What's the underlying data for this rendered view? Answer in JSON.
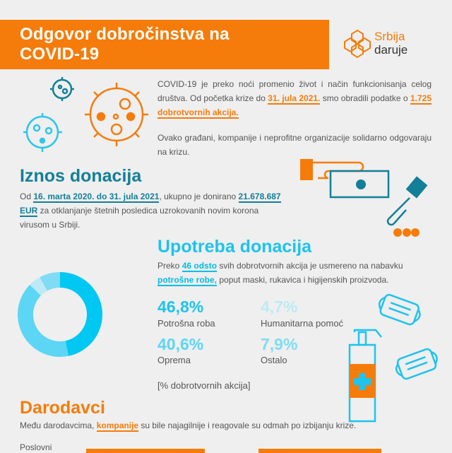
{
  "header": {
    "title_line1": "Odgovor dobročinstva na",
    "title_line2": "COVID-19",
    "logo_line1": "Srbija",
    "logo_line2": "daruje"
  },
  "intro": {
    "p1_a": "COVID-19 je preko noći promenio život i način funkcionisanja celog društva. Od početka krize do ",
    "p1_hl1": "31. jula 2021.",
    "p1_b": " smo obradili podatke o ",
    "p1_hl2": "1.725 dobrotvornih akcija.",
    "p2": "Ovako građani, kompanije i neprofitne organizacije solidarno odgovaraju na krizu."
  },
  "iznos": {
    "heading": "Iznos donacija",
    "a": "Od ",
    "hl1": "16. marta 2020. do 31. jula 2021",
    "b": ", ukupno je donirano ",
    "hl2": "21.678.687 EUR",
    "c": " za otklanjanje štetnih posledica uzrokovanih novim korona virusom u Srbiji."
  },
  "upotreba": {
    "heading": "Upotreba donacija",
    "a": "Preko ",
    "hl1": "46 odsto",
    "b": " svih dobrotvornih akcija je usmereno na nabavku ",
    "hl2": "potrošne robe,",
    "c": " poput maski, rukavica i higijenskih proizvoda.",
    "note": "[% dobrotvornih akcija]"
  },
  "chart_data": {
    "type": "pie",
    "donut": true,
    "unit": "% dobrotvornih akcija",
    "slices": [
      {
        "label": "Potrošna roba",
        "value": 46.8,
        "display": "46,8%",
        "color": "#00c8f2"
      },
      {
        "label": "Oprema",
        "value": 40.6,
        "display": "40,6%",
        "color": "#5cd6f4"
      },
      {
        "label": "Humanitarna pomoć",
        "value": 4.7,
        "display": "4,7%",
        "color": "#bdeaf5"
      },
      {
        "label": "Ostalo",
        "value": 7.9,
        "display": "7,9%",
        "color": "#7fdcf4"
      }
    ]
  },
  "darodavci": {
    "heading": "Darodavci",
    "a": "Među darodavcima, ",
    "hl": "kompanije",
    "b": " su bile najagilnije i reagovale su odmah po izbijanju krize.",
    "row_label": "Poslovni"
  },
  "colors": {
    "orange": "#f57c0a",
    "teal": "#137f99",
    "cyan": "#00bde6"
  }
}
